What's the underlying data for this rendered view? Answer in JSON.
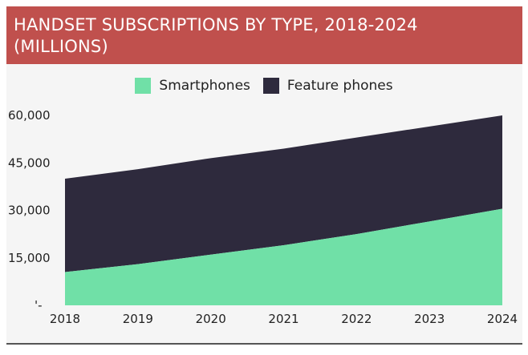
{
  "colors": {
    "title_background": "#c0504d",
    "smartphones": "#70e0a7",
    "feature_phones": "#2e2a3d"
  },
  "chart_data": {
    "type": "area",
    "stacked": true,
    "title": "HANDSET SUBSCRIPTIONS BY TYPE, 2018-2024 (MILLIONS)",
    "title_lines": [
      "HANDSET SUBSCRIPTIONS BY TYPE, 2018-2024",
      "(MILLIONS)"
    ],
    "x": [
      "2018",
      "2019",
      "2020",
      "2021",
      "2022",
      "2023",
      "2024"
    ],
    "series": [
      {
        "name": "Smartphones",
        "color": "#70e0a7",
        "values": [
          10500,
          13000,
          16000,
          19000,
          22500,
          26500,
          30500
        ]
      },
      {
        "name": "Feature phones",
        "color": "#2e2a3d",
        "values": [
          29500,
          30000,
          30500,
          30500,
          30500,
          30000,
          29500
        ]
      }
    ],
    "ylim": [
      0,
      60000
    ],
    "yticks": [
      0,
      15000,
      30000,
      45000,
      60000
    ],
    "ytick_labels": [
      "'-",
      "15,000",
      "30,000",
      "45,000",
      "60,000"
    ],
    "legend_position": "top-center",
    "grid": false
  }
}
